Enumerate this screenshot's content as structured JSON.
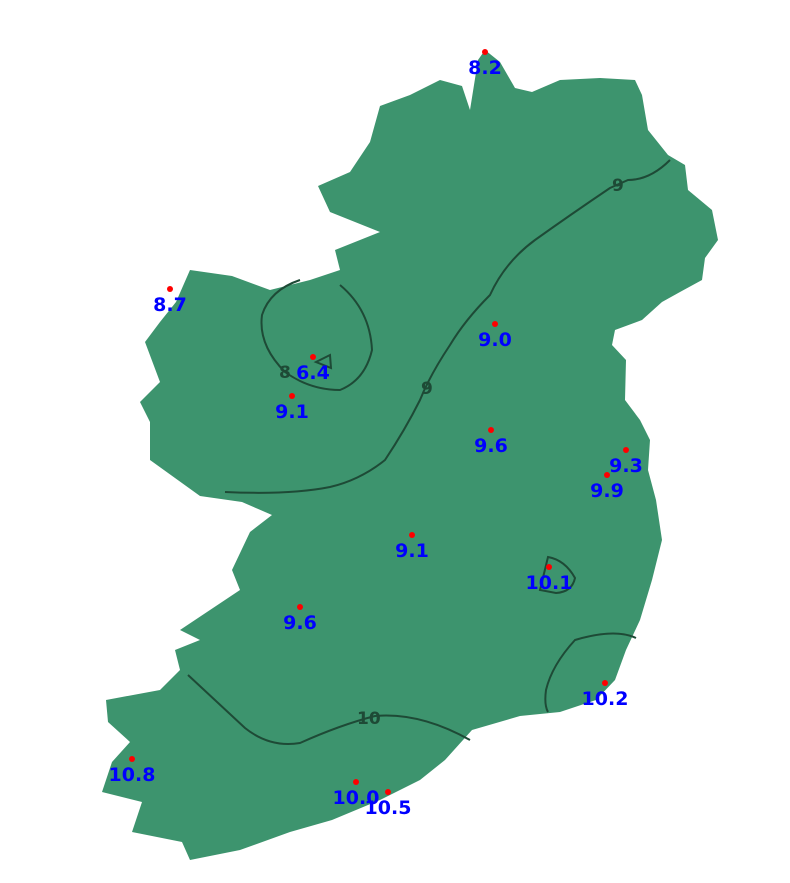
{
  "colors": {
    "land": "#3d946e",
    "contour": "#1e4a36",
    "station": "#ff0000",
    "label": "#0000ff"
  },
  "stations": [
    {
      "value": "8.2"
    },
    {
      "value": "8.7"
    },
    {
      "value": "9.0"
    },
    {
      "value": "6.4"
    },
    {
      "value": "9.1"
    },
    {
      "value": "9.6"
    },
    {
      "value": "9.3"
    },
    {
      "value": "9.9"
    },
    {
      "value": "9.1"
    },
    {
      "value": "10.1"
    },
    {
      "value": "9.6"
    },
    {
      "value": "10.2"
    },
    {
      "value": "10.8"
    },
    {
      "value": "10.0"
    },
    {
      "value": "10.5"
    }
  ],
  "contour_labels": [
    "9",
    "8",
    "9",
    "10"
  ]
}
